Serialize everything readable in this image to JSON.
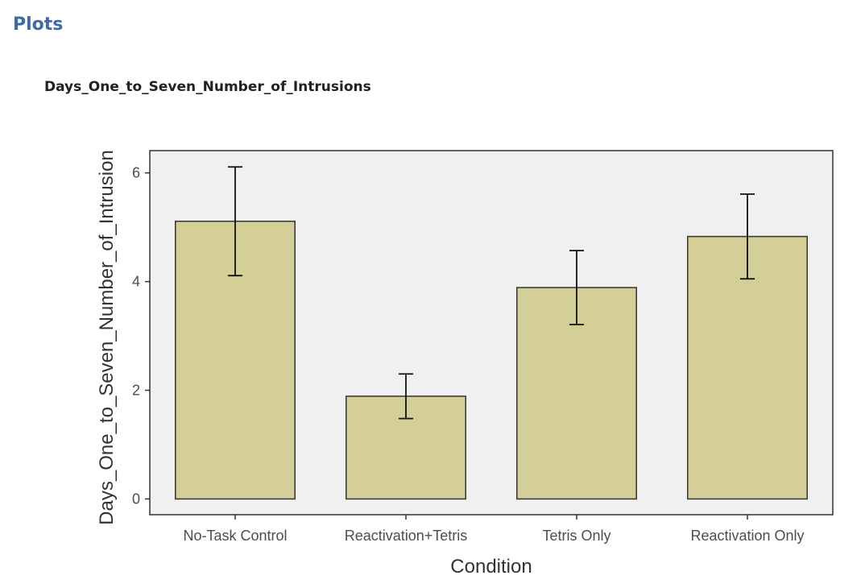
{
  "page": {
    "section_title": "Plots",
    "plot_title": "Days_One_to_Seven_Number_of_Intrusions"
  },
  "chart_data": {
    "type": "bar",
    "categories": [
      "No-Task Control",
      "Reactivation+Tetris",
      "Tetris Only",
      "Reactivation Only"
    ],
    "values": [
      5.11,
      1.89,
      3.89,
      4.83
    ],
    "error_low": [
      4.11,
      1.48,
      3.21,
      4.05
    ],
    "error_high": [
      6.11,
      2.3,
      4.57,
      5.61
    ],
    "xlabel": "Condition",
    "ylabel": "Days_One_to_Seven_Number_of_Intrusion",
    "yticks": [
      0,
      2,
      4,
      6
    ],
    "ylim": [
      -0.29,
      6.41
    ],
    "grid": false,
    "colors": {
      "bar_fill": "#d4cf97",
      "bar_stroke": "#333333",
      "panel_background": "#f0f0f0",
      "error_bar": "#111111"
    }
  }
}
